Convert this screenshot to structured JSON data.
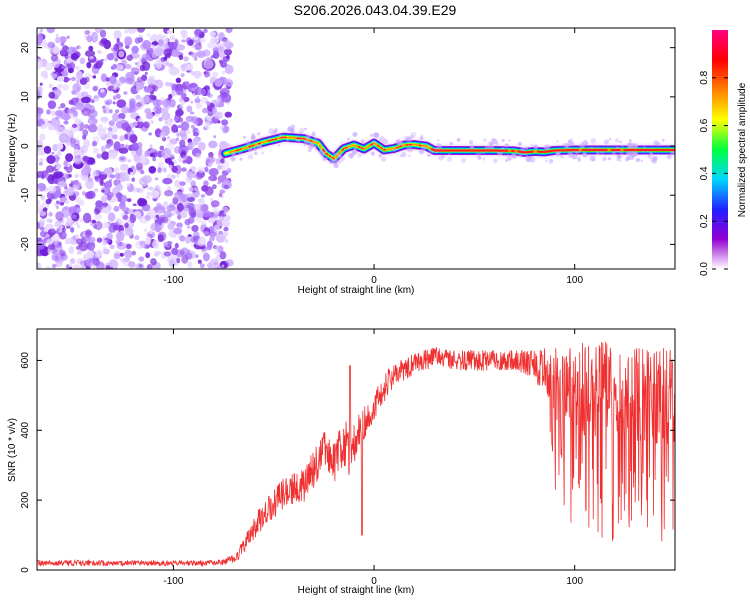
{
  "title": "S206.2026.043.04.39.E29",
  "chart_data": [
    {
      "type": "heatmap",
      "xlabel": "Height of straight line (km)",
      "ylabel": "Frequency (Hz)",
      "xlim": [
        -168,
        150
      ],
      "ylim": [
        -25,
        24
      ],
      "xticks": [
        -100,
        0,
        100
      ],
      "yticks": [
        -20,
        -10,
        0,
        10,
        20
      ],
      "noise_region_x": [
        -168,
        -72
      ],
      "ridge": {
        "x": [
          -74,
          -65,
          -55,
          -45,
          -35,
          -28,
          -24,
          -20,
          -15,
          -10,
          -5,
          0,
          5,
          10,
          15,
          20,
          26,
          30,
          40,
          50,
          60,
          70,
          75,
          80,
          85,
          90,
          100,
          110,
          120,
          130,
          140,
          150
        ],
        "freq": [
          -1.5,
          -0.5,
          0.8,
          1.8,
          1.5,
          0.6,
          -1.5,
          -2.6,
          -0.5,
          0.2,
          -0.6,
          0.6,
          -0.8,
          -0.5,
          0.2,
          0.3,
          0.0,
          -0.9,
          -0.9,
          -0.9,
          -0.9,
          -1.0,
          -1.3,
          -1.1,
          -1.2,
          -0.9,
          -0.8,
          -0.8,
          -0.8,
          -0.8,
          -0.8,
          -0.8
        ]
      },
      "colorbar": {
        "label": "Normalized spectral amplitude",
        "ticks": [
          0.0,
          0.2,
          0.4,
          0.6,
          0.8
        ],
        "tick_labels": [
          "0.0",
          "0.2",
          "0.4",
          "0.6",
          "0.8"
        ],
        "range": [
          0,
          1
        ],
        "colors": [
          "#ffffff",
          "#9400d3",
          "#2020ff",
          "#00d8ff",
          "#00ff40",
          "#ffff00",
          "#ff8000",
          "#ff0000",
          "#ff0080"
        ]
      }
    },
    {
      "type": "line",
      "xlabel": "Height of straight line (km)",
      "ylabel": "SNR (10 * v/v)",
      "xlim": [
        -168,
        150
      ],
      "ylim": [
        0,
        690
      ],
      "xticks": [
        -100,
        0,
        100
      ],
      "yticks": [
        0,
        200,
        400,
        600
      ],
      "line_color": "#f03030",
      "series": [
        {
          "x": [
            -168,
            -150,
            -120,
            -100,
            -85,
            -75,
            -68,
            -62,
            -55,
            -45,
            -35,
            -30,
            -25,
            -20,
            -15,
            -12,
            -8,
            -5,
            0,
            5,
            10,
            20,
            30,
            40,
            50,
            60,
            70,
            80,
            85,
            90,
            100,
            110,
            120,
            130,
            140,
            150
          ],
          "y": [
            20,
            20,
            20,
            20,
            20,
            22,
            40,
            100,
            160,
            220,
            240,
            290,
            340,
            300,
            370,
            330,
            390,
            420,
            470,
            520,
            560,
            590,
            610,
            600,
            600,
            600,
            600,
            590,
            560,
            540,
            520,
            520,
            510,
            500,
            500,
            490
          ],
          "noise": [
            8,
            8,
            8,
            8,
            8,
            8,
            15,
            30,
            40,
            45,
            50,
            55,
            60,
            60,
            70,
            70,
            60,
            50,
            40,
            40,
            35,
            30,
            30,
            30,
            30,
            30,
            30,
            40,
            80,
            110,
            130,
            140,
            140,
            140,
            140,
            140
          ]
        }
      ]
    }
  ]
}
